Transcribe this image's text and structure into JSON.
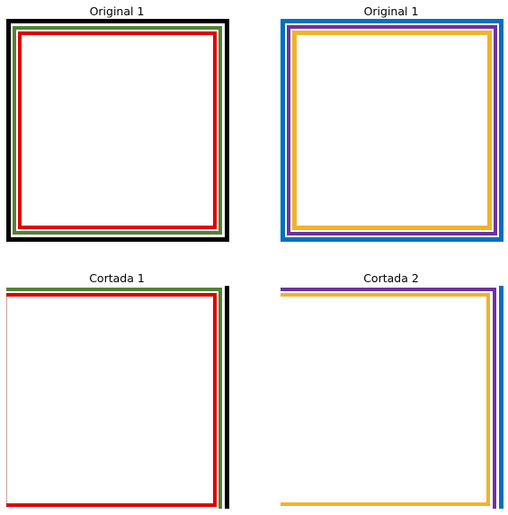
{
  "panels": [
    {
      "title": "Original 1",
      "frames": [
        {
          "name": "outer-frame",
          "color": "#000000"
        },
        {
          "name": "middle-frame",
          "color": "#538135"
        },
        {
          "name": "inner-frame",
          "color": "#e00000"
        }
      ]
    },
    {
      "title": "Original 1",
      "frames": [
        {
          "name": "outer-frame",
          "color": "#0070c0"
        },
        {
          "name": "middle-frame",
          "color": "#7030a0"
        },
        {
          "name": "inner-frame",
          "color": "#f0b429"
        }
      ]
    },
    {
      "title": "Cortada 1",
      "frames": [
        {
          "name": "outer-frame",
          "color": "#000000"
        },
        {
          "name": "middle-frame",
          "color": "#538135"
        },
        {
          "name": "inner-frame",
          "color": "#e00000"
        }
      ]
    },
    {
      "title": "Cortada 2",
      "frames": [
        {
          "name": "outer-frame",
          "color": "#0070c0"
        },
        {
          "name": "middle-frame",
          "color": "#7030a0"
        },
        {
          "name": "inner-frame",
          "color": "#f0b429"
        }
      ]
    }
  ]
}
